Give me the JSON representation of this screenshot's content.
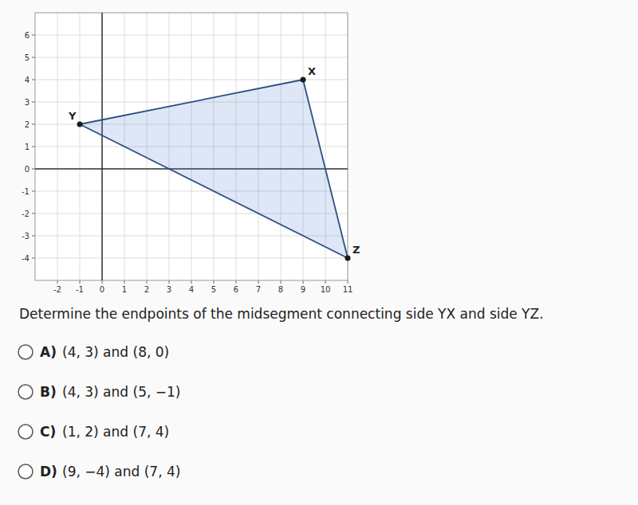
{
  "chart_data": {
    "type": "polygon",
    "x": [
      -1,
      9,
      11
    ],
    "values": [
      2,
      4,
      -4
    ],
    "point_labels": [
      "Y",
      "X",
      "Z"
    ],
    "xlim": [
      -3,
      11
    ],
    "ylim": [
      -5,
      7
    ],
    "xticks": [
      -2,
      -1,
      0,
      1,
      2,
      3,
      4,
      5,
      6,
      7,
      8,
      9,
      10,
      11
    ],
    "yticks": [
      -4,
      -3,
      -2,
      -1,
      0,
      1,
      2,
      3,
      4,
      5,
      6
    ],
    "grid": true,
    "question": "Determine the endpoints of the midsegment connecting side YX and side YZ.",
    "choices": [
      {
        "label": "A)",
        "text": "(4, 3) and (8, 0)"
      },
      {
        "label": "B)",
        "text": "(4, 3) and (5, −1)"
      },
      {
        "label": "C)",
        "text": "(1, 2) and (7, 4)"
      },
      {
        "label": "D)",
        "text": "(9, −4) and (7, 4)"
      }
    ]
  }
}
